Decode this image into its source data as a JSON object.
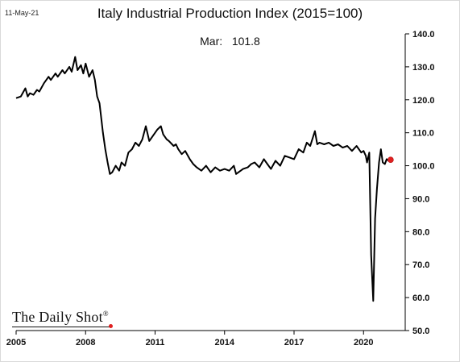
{
  "header": {
    "date": "11-May-21",
    "title": "Italy Industrial Production Index (2015=100)",
    "annotation_label": "Mar:",
    "annotation_value": "101.8"
  },
  "branding": {
    "name": "The Daily Shot",
    "mark": "®"
  },
  "colors": {
    "line": "#000000",
    "marker": "#e02020",
    "axis": "#000000"
  },
  "chart_data": {
    "type": "line",
    "title": "Italy Industrial Production Index (2015=100)",
    "xlabel": "",
    "ylabel": "",
    "xlim": [
      2005.0,
      2021.8
    ],
    "ylim": [
      50,
      140
    ],
    "x_ticks": [
      2005,
      2008,
      2011,
      2014,
      2017,
      2020
    ],
    "y_ticks": [
      50,
      60,
      70,
      80,
      90,
      100,
      110,
      120,
      130,
      140
    ],
    "y_tick_labels": [
      "50.0",
      "60.0",
      "70.0",
      "80.0",
      "90.0",
      "100.0",
      "110.0",
      "120.0",
      "130.0",
      "140.0"
    ],
    "grid": false,
    "series": [
      {
        "x": [
          2005.0,
          2005.2,
          2005.4,
          2005.5,
          2005.6,
          2005.75,
          2005.9,
          2006.0,
          2006.2,
          2006.4,
          2006.5,
          2006.7,
          2006.8,
          2007.0,
          2007.1,
          2007.3,
          2007.4,
          2007.55,
          2007.65,
          2007.8,
          2007.9,
          2008.0,
          2008.15,
          2008.3,
          2008.4,
          2008.5,
          2008.6,
          2008.75,
          2008.85,
          2008.95,
          2009.05,
          2009.15,
          2009.3,
          2009.45,
          2009.55,
          2009.7,
          2009.85,
          2010.0,
          2010.15,
          2010.3,
          2010.45,
          2010.6,
          2010.75,
          2010.9,
          2011.0,
          2011.1,
          2011.25,
          2011.35,
          2011.5,
          2011.6,
          2011.8,
          2011.9,
          2012.0,
          2012.15,
          2012.3,
          2012.5,
          2012.65,
          2012.8,
          2013.0,
          2013.2,
          2013.4,
          2013.6,
          2013.8,
          2014.0,
          2014.2,
          2014.4,
          2014.5,
          2014.6,
          2014.8,
          2015.0,
          2015.15,
          2015.3,
          2015.5,
          2015.7,
          2015.85,
          2016.0,
          2016.2,
          2016.4,
          2016.6,
          2016.8,
          2017.0,
          2017.2,
          2017.4,
          2017.55,
          2017.7,
          2017.9,
          2018.0,
          2018.1,
          2018.3,
          2018.5,
          2018.7,
          2018.9,
          2019.1,
          2019.3,
          2019.5,
          2019.7,
          2019.9,
          2020.0,
          2020.1,
          2020.15,
          2020.25,
          2020.33,
          2020.42,
          2020.5,
          2020.58,
          2020.67,
          2020.75,
          2020.83,
          2020.92,
          2021.0,
          2021.08,
          2021.17
        ],
        "y": [
          120.5,
          121.0,
          123.5,
          121.0,
          122.0,
          121.5,
          123.0,
          122.5,
          125.0,
          127.0,
          126.0,
          128.0,
          127.0,
          129.0,
          128.0,
          130.0,
          128.5,
          133.0,
          129.0,
          130.5,
          128.0,
          131.0,
          127.0,
          129.0,
          126.0,
          121.0,
          119.0,
          110.0,
          105.0,
          101.0,
          97.5,
          98.0,
          100.0,
          98.5,
          101.0,
          100.0,
          104.0,
          105.0,
          107.0,
          106.0,
          108.0,
          112.0,
          107.5,
          109.0,
          110.0,
          111.0,
          112.0,
          109.5,
          108.0,
          107.5,
          106.0,
          106.5,
          105.0,
          103.5,
          104.5,
          102.0,
          100.5,
          99.5,
          98.5,
          100.0,
          98.0,
          99.5,
          98.5,
          99.0,
          98.5,
          100.0,
          97.5,
          98.0,
          99.0,
          99.5,
          100.5,
          101.0,
          99.5,
          102.0,
          100.5,
          99.0,
          101.5,
          100.0,
          103.0,
          102.5,
          102.0,
          105.0,
          104.0,
          107.0,
          106.0,
          110.5,
          106.5,
          107.0,
          106.5,
          107.0,
          106.0,
          106.5,
          105.5,
          106.0,
          104.5,
          106.0,
          104.0,
          104.5,
          103.0,
          101.0,
          104.0,
          73.0,
          59.0,
          84.0,
          93.0,
          101.0,
          105.0,
          101.0,
          100.5,
          102.0,
          101.5,
          101.8
        ]
      }
    ],
    "last_point": {
      "x": 2021.17,
      "y": 101.8,
      "label": "Mar: 101.8"
    }
  }
}
